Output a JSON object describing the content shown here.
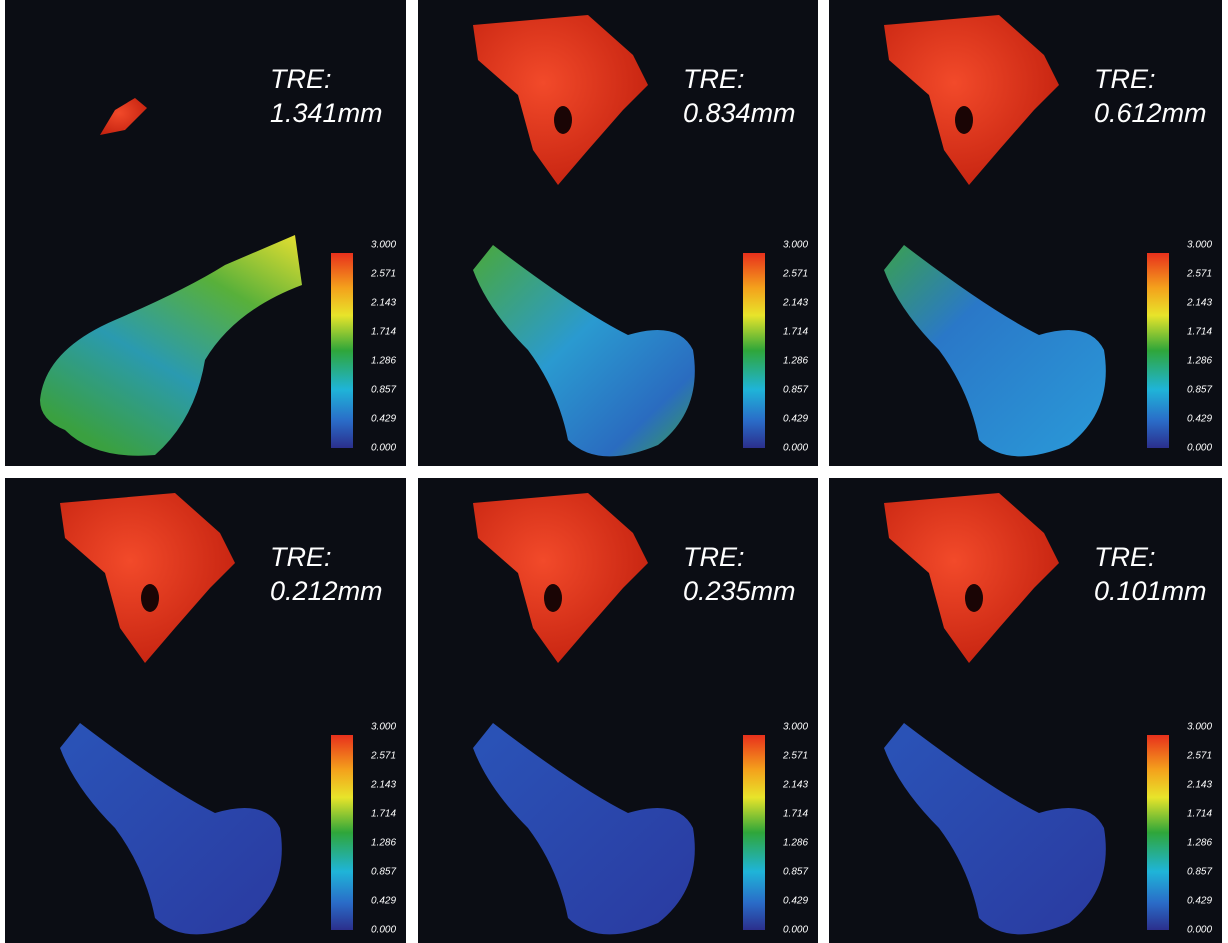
{
  "tre_label": "TRE:",
  "panels": [
    {
      "tre": "1.341mm"
    },
    {
      "tre": "0.834mm"
    },
    {
      "tre": "0.612mm"
    },
    {
      "tre": "0.212mm"
    },
    {
      "tre": "0.235mm"
    },
    {
      "tre": "0.101mm"
    }
  ],
  "colorbar": {
    "ticks": [
      "3.000",
      "2.571",
      "2.143",
      "1.714",
      "1.286",
      "0.857",
      "0.429",
      "0.000"
    ]
  }
}
